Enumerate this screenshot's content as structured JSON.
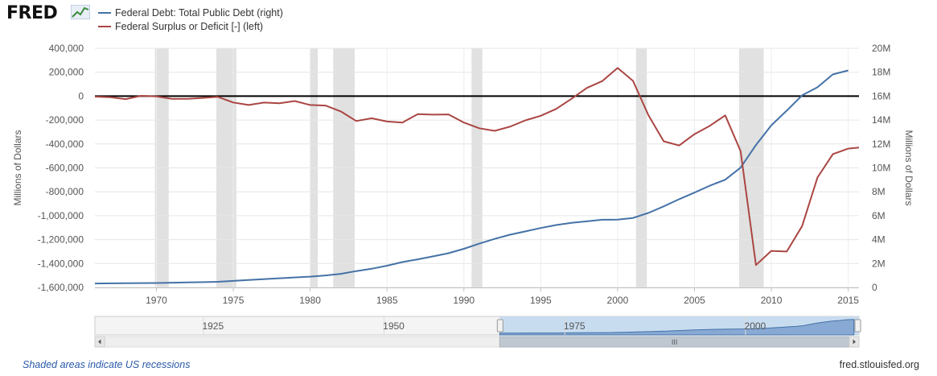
{
  "header": {
    "logo_text": "FRED",
    "logo_icon": "line-chart-icon"
  },
  "legend": [
    {
      "label": "Federal Debt: Total Public Debt (right)",
      "color": "#4572a7"
    },
    {
      "label": "Federal Surplus or Deficit [-] (left)",
      "color": "#aa4643"
    }
  ],
  "footer": {
    "recession_note": "Shaded areas indicate US recessions",
    "source": "fred.stlouisfed.org"
  },
  "navigator": {
    "ticks": [
      "1925",
      "1950",
      "1975",
      "2000"
    ],
    "scroll_grip": "III"
  },
  "chart_data": {
    "type": "line",
    "x_range": [
      1966,
      2015.7
    ],
    "x_ticks": [
      1970,
      1975,
      1980,
      1985,
      1990,
      1995,
      2000,
      2005,
      2010,
      2015
    ],
    "left_axis": {
      "title": "Millions of Dollars",
      "min": -1600000,
      "max": 400000,
      "ticks": [
        400000,
        200000,
        0,
        -200000,
        -400000,
        -600000,
        -800000,
        -1000000,
        -1200000,
        -1400000,
        -1600000
      ],
      "tick_labels": [
        "400,000",
        "200,000",
        "0",
        "-200,000",
        "-400,000",
        "-600,000",
        "-800,000",
        "-1,000,000",
        "-1,200,000",
        "-1,400,000",
        "-1,600,000"
      ]
    },
    "right_axis": {
      "title": "Millions of Dollars",
      "min": 0,
      "max": 20000000,
      "ticks": [
        20000000,
        18000000,
        16000000,
        14000000,
        12000000,
        10000000,
        8000000,
        6000000,
        4000000,
        2000000,
        0
      ],
      "tick_labels": [
        "20M",
        "18M",
        "16M",
        "14M",
        "12M",
        "10M",
        "8M",
        "6M",
        "4M",
        "2M",
        "0"
      ]
    },
    "recessions": [
      [
        1969.9,
        1970.8
      ],
      [
        1973.9,
        1975.2
      ],
      [
        1980.0,
        1980.5
      ],
      [
        1981.5,
        1982.9
      ],
      [
        1990.5,
        1991.2
      ],
      [
        2001.2,
        2001.9
      ],
      [
        2007.9,
        2009.5
      ]
    ],
    "series": [
      {
        "name": "Federal Debt: Total Public Debt (right)",
        "axis": "right",
        "color": "#4572a7",
        "x": [
          1966,
          1968,
          1970,
          1972,
          1974,
          1976,
          1978,
          1980,
          1981,
          1982,
          1983,
          1984,
          1985,
          1986,
          1987,
          1988,
          1989,
          1990,
          1991,
          1992,
          1993,
          1994,
          1995,
          1996,
          1997,
          1998,
          1999,
          2000,
          2001,
          2002,
          2003,
          2004,
          2005,
          2006,
          2007,
          2008,
          2009,
          2010,
          2011,
          2012,
          2013,
          2014,
          2015
        ],
        "values": [
          330000,
          350000,
          370000,
          420000,
          470000,
          620000,
          770000,
          900000,
          1000000,
          1140000,
          1370000,
          1560000,
          1820000,
          2120000,
          2350000,
          2600000,
          2860000,
          3230000,
          3660000,
          4060000,
          4410000,
          4690000,
          4970000,
          5220000,
          5410000,
          5530000,
          5660000,
          5670000,
          5810000,
          6230000,
          6780000,
          7380000,
          7930000,
          8510000,
          9010000,
          10020000,
          11910000,
          13560000,
          14790000,
          16070000,
          16740000,
          17820000,
          18150000
        ]
      },
      {
        "name": "Federal Surplus or Deficit [-] (left)",
        "axis": "left",
        "color": "#aa4643",
        "x": [
          1966,
          1967,
          1968,
          1969,
          1970,
          1971,
          1972,
          1973,
          1974,
          1975,
          1976,
          1977,
          1978,
          1979,
          1980,
          1981,
          1982,
          1983,
          1984,
          1985,
          1986,
          1987,
          1988,
          1989,
          1990,
          1991,
          1992,
          1993,
          1994,
          1995,
          1996,
          1997,
          1998,
          1999,
          2000,
          2001,
          2002,
          2003,
          2004,
          2005,
          2006,
          2007,
          2008,
          2009,
          2010,
          2011,
          2012,
          2013,
          2014,
          2015,
          2015.7
        ],
        "values": [
          -4000,
          -9000,
          -25000,
          3000,
          -3000,
          -23000,
          -23000,
          -15000,
          -6000,
          -53000,
          -74000,
          -54000,
          -59000,
          -41000,
          -74000,
          -79000,
          -128000,
          -208000,
          -185000,
          -212000,
          -221000,
          -150000,
          -155000,
          -153000,
          -221000,
          -269000,
          -290000,
          -255000,
          -203000,
          -164000,
          -107000,
          -22000,
          69000,
          126000,
          236000,
          128000,
          -158000,
          -378000,
          -413000,
          -318000,
          -248000,
          -161000,
          -459000,
          -1413000,
          -1294000,
          -1300000,
          -1087000,
          -680000,
          -485000,
          -439000,
          -430000
        ]
      }
    ]
  }
}
